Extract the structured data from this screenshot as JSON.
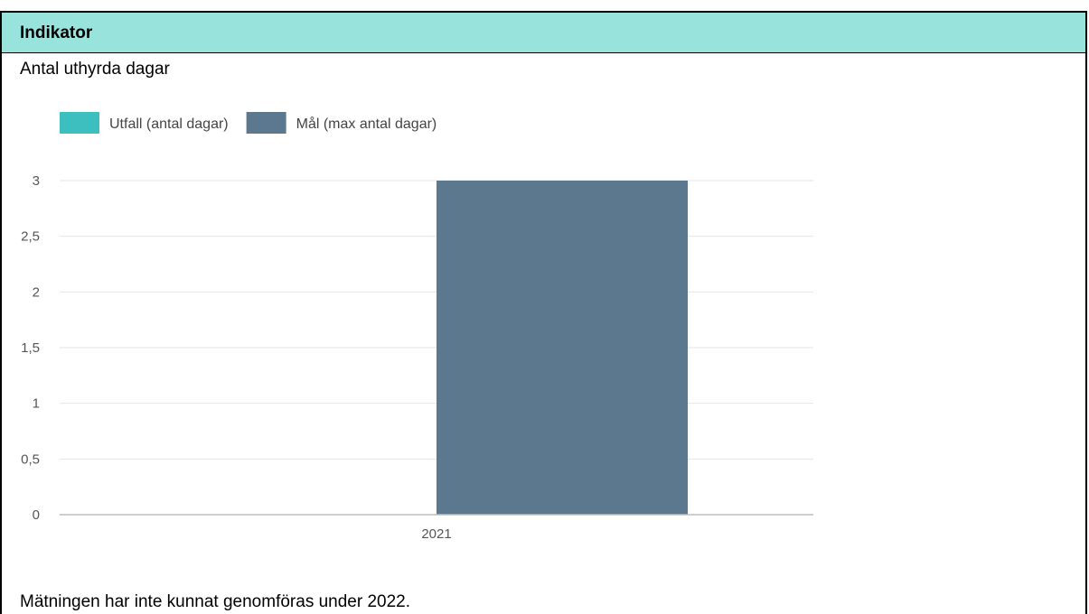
{
  "header": {
    "title": "Indikator"
  },
  "indicator_name": "Antal uthyrda dagar",
  "footer_note": "Mätningen har inte kunnat genomföras under 2022.",
  "chart_data": {
    "type": "bar",
    "categories": [
      "2021"
    ],
    "series": [
      {
        "name": "Utfall (antal dagar)",
        "values": [
          null
        ],
        "color": "#3dbfbf"
      },
      {
        "name": "Mål (max antal dagar)",
        "values": [
          3
        ],
        "color": "#5c788f"
      }
    ],
    "ylim": [
      0,
      3
    ],
    "yticks": [
      0,
      0.5,
      1,
      1.5,
      2,
      2.5,
      3
    ],
    "ytick_labels": [
      "0",
      "0,5",
      "1",
      "1,5",
      "2",
      "2,5",
      "3"
    ],
    "grid": true,
    "legend_position": "top-left"
  }
}
